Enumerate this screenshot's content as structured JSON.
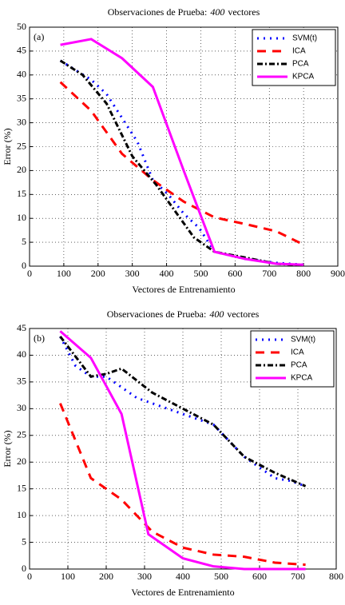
{
  "chart_data": [
    {
      "type": "line",
      "title": [
        "Observaciones de Prueba:",
        "400",
        "vectores"
      ],
      "annotation": "(a)",
      "x_label": "Vectores de Entrenamiento",
      "y_label": "Error (%)",
      "xlim": [
        0,
        900
      ],
      "xticks": [
        0,
        100,
        200,
        300,
        400,
        500,
        600,
        700,
        800,
        900
      ],
      "ylim": [
        0,
        50
      ],
      "yticks": [
        0,
        5,
        10,
        15,
        20,
        25,
        30,
        35,
        40,
        45,
        50
      ],
      "grid": true,
      "legend": "upper-right",
      "series": [
        {
          "name": "SVM(t)",
          "color": "#0000ff",
          "style": "dotted",
          "x": [
            90,
            135,
            180,
            225,
            270,
            315,
            360,
            405,
            450,
            495,
            540,
            630,
            720,
            800
          ],
          "values": [
            43,
            41,
            39,
            36,
            31,
            26,
            18,
            15,
            11,
            8,
            3,
            1.5,
            0.7,
            0.3
          ]
        },
        {
          "name": "ICA",
          "color": "#ff0000",
          "style": "dashed",
          "x": [
            90,
            180,
            270,
            360,
            450,
            540,
            630,
            720,
            800
          ],
          "values": [
            38.5,
            32.5,
            23.5,
            18,
            13.5,
            10.2,
            8.8,
            7.3,
            4.5
          ]
        },
        {
          "name": "PCA",
          "color": "#000000",
          "style": "dashdot",
          "x": [
            90,
            155,
            225,
            300,
            370,
            420,
            480,
            540,
            630,
            720,
            800
          ],
          "values": [
            43,
            40,
            34,
            23,
            17,
            12,
            6,
            3,
            1.8,
            0.5,
            0.2
          ]
        },
        {
          "name": "KPCA",
          "color": "#ff00ff",
          "style": "solid",
          "x": [
            90,
            180,
            270,
            360,
            450,
            540,
            630,
            720,
            800
          ],
          "values": [
            46.3,
            47.5,
            43.5,
            37.5,
            20,
            3,
            1.5,
            0.5,
            0.3
          ]
        }
      ]
    },
    {
      "type": "line",
      "title": [
        "Observaciones de Prueba:",
        "400",
        "vectores"
      ],
      "annotation": "(b)",
      "x_label": "Vectores de Entrenamiento",
      "y_label": "Error (%)",
      "xlim": [
        0,
        800
      ],
      "xticks": [
        0,
        100,
        200,
        300,
        400,
        500,
        600,
        700,
        800
      ],
      "ylim": [
        0,
        45
      ],
      "yticks": [
        0,
        5,
        10,
        15,
        20,
        25,
        30,
        35,
        40,
        45
      ],
      "grid": true,
      "legend": "upper-right",
      "series": [
        {
          "name": "SVM(t)",
          "color": "#0000ff",
          "style": "dotted",
          "x": [
            80,
            120,
            160,
            200,
            240,
            280,
            320,
            360,
            400,
            440,
            480,
            520,
            560,
            600,
            640,
            680,
            720
          ],
          "values": [
            43.5,
            38,
            36,
            36,
            34,
            32,
            31,
            30,
            29,
            28,
            27,
            24,
            21,
            19,
            17,
            16.5,
            15.5
          ]
        },
        {
          "name": "ICA",
          "color": "#ff0000",
          "style": "dashed",
          "x": [
            80,
            160,
            240,
            320,
            400,
            480,
            560,
            640,
            720
          ],
          "values": [
            31,
            17,
            13,
            7,
            4,
            2.7,
            2.3,
            1.2,
            0.8
          ]
        },
        {
          "name": "PCA",
          "color": "#000000",
          "style": "dashdot",
          "x": [
            80,
            160,
            200,
            240,
            320,
            400,
            480,
            560,
            640,
            720
          ],
          "values": [
            43.5,
            36,
            36.5,
            37.5,
            33,
            30,
            27,
            21,
            18,
            15.5
          ]
        },
        {
          "name": "KPCA",
          "color": "#ff00ff",
          "style": "solid",
          "x": [
            80,
            160,
            240,
            310,
            400,
            480,
            560,
            640,
            720
          ],
          "values": [
            44.5,
            39.5,
            29,
            6.5,
            2,
            0.5,
            0,
            0,
            0
          ]
        }
      ]
    }
  ]
}
